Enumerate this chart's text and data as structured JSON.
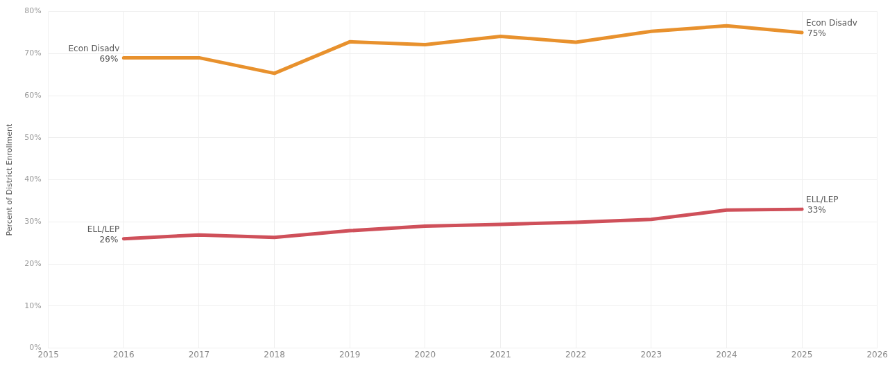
{
  "chart_data": {
    "type": "line",
    "ylabel": "Percent of District Enrollment",
    "x": [
      2016,
      2017,
      2018,
      2019,
      2020,
      2021,
      2022,
      2023,
      2024,
      2025
    ],
    "series": [
      {
        "name": "Econ Disadv",
        "color": "#e8912d",
        "values": [
          69,
          69,
          65.3,
          72.8,
          72.1,
          74.1,
          72.7,
          75.3,
          76.6,
          75
        ],
        "value_labels": [
          "69%",
          null,
          null,
          null,
          null,
          null,
          null,
          null,
          null,
          "75%"
        ]
      },
      {
        "name": "ELL/LEP",
        "color": "#cf505a",
        "values": [
          26,
          26.9,
          26.3,
          27.9,
          29,
          29.4,
          29.9,
          30.6,
          32.8,
          33
        ],
        "value_labels": [
          "26%",
          null,
          null,
          null,
          null,
          null,
          null,
          null,
          null,
          "33%"
        ]
      }
    ],
    "xlim": [
      2015,
      2026
    ],
    "xticks": [
      2015,
      2016,
      2017,
      2018,
      2019,
      2020,
      2021,
      2022,
      2023,
      2024,
      2025,
      2026
    ],
    "ylim": [
      0,
      80
    ],
    "yticks": [
      {
        "value": 0,
        "label": "0%"
      },
      {
        "value": 10,
        "label": "10%"
      },
      {
        "value": 20,
        "label": "20%"
      },
      {
        "value": 30,
        "label": "30%"
      },
      {
        "value": 40,
        "label": "40%"
      },
      {
        "value": 50,
        "label": "50%"
      },
      {
        "value": 60,
        "label": "60%"
      },
      {
        "value": 70,
        "label": "70%"
      },
      {
        "value": 80,
        "label": "80%"
      }
    ],
    "grid": true,
    "legend": false,
    "marker": "none",
    "line_style": "solid"
  }
}
